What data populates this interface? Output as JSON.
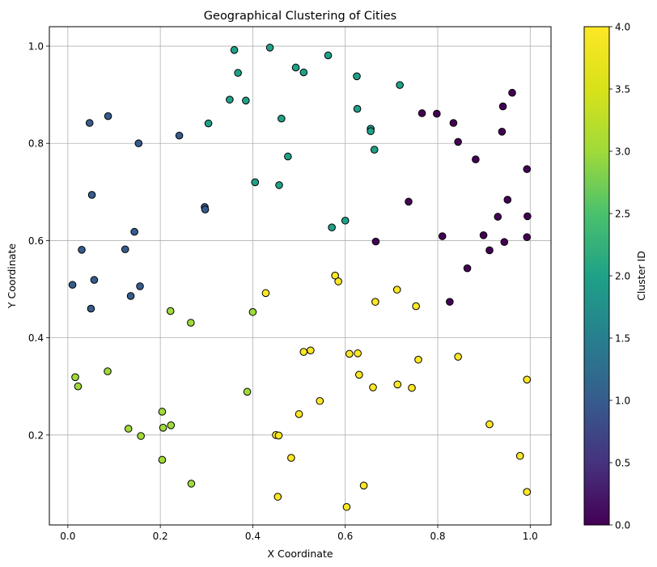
{
  "chart_data": {
    "type": "scatter",
    "title": "Geographical Clustering of Cities",
    "xlabel": "X Coordinate",
    "ylabel": "Y Coordinate",
    "xlim": [
      -0.04,
      1.045
    ],
    "ylim": [
      0.015,
      1.04
    ],
    "xticks": [
      0.0,
      0.2,
      0.4,
      0.6,
      0.8,
      1.0
    ],
    "xtick_labels": [
      "0.0",
      "0.2",
      "0.4",
      "0.6",
      "0.8",
      "1.0"
    ],
    "yticks": [
      0.2,
      0.4,
      0.6,
      0.8,
      1.0
    ],
    "ytick_labels": [
      "0.2",
      "0.4",
      "0.6",
      "0.8",
      "1.0"
    ],
    "grid": true,
    "colormap": "viridis",
    "colorbar": {
      "label": "Cluster ID",
      "min": 0.0,
      "max": 4.0,
      "ticks": [
        0.0,
        0.5,
        1.0,
        1.5,
        2.0,
        2.5,
        3.0,
        3.5,
        4.0
      ],
      "tick_labels": [
        "0.0",
        "0.5",
        "1.0",
        "1.5",
        "2.0",
        "2.5",
        "3.0",
        "3.5",
        "4.0"
      ]
    },
    "points": [
      [
        0.766,
        0.862,
        0
      ],
      [
        0.798,
        0.861,
        0
      ],
      [
        0.834,
        0.842,
        0
      ],
      [
        0.844,
        0.803,
        0
      ],
      [
        0.941,
        0.876,
        0
      ],
      [
        0.961,
        0.904,
        0
      ],
      [
        0.939,
        0.824,
        0
      ],
      [
        0.882,
        0.767,
        0
      ],
      [
        0.993,
        0.747,
        0
      ],
      [
        0.737,
        0.68,
        0
      ],
      [
        0.951,
        0.684,
        0
      ],
      [
        0.93,
        0.649,
        0
      ],
      [
        0.994,
        0.65,
        0
      ],
      [
        0.81,
        0.609,
        0
      ],
      [
        0.899,
        0.611,
        0
      ],
      [
        0.993,
        0.607,
        0
      ],
      [
        0.944,
        0.597,
        0
      ],
      [
        0.666,
        0.598,
        0
      ],
      [
        0.912,
        0.58,
        0
      ],
      [
        0.864,
        0.543,
        0
      ],
      [
        0.826,
        0.474,
        0
      ],
      [
        0.087,
        0.856,
        1
      ],
      [
        0.047,
        0.842,
        1
      ],
      [
        0.153,
        0.8,
        1
      ],
      [
        0.241,
        0.816,
        1
      ],
      [
        0.052,
        0.694,
        1
      ],
      [
        0.296,
        0.669,
        1
      ],
      [
        0.297,
        0.664,
        1
      ],
      [
        0.144,
        0.618,
        1
      ],
      [
        0.03,
        0.581,
        1
      ],
      [
        0.124,
        0.582,
        1
      ],
      [
        0.057,
        0.519,
        1
      ],
      [
        0.01,
        0.509,
        1
      ],
      [
        0.156,
        0.506,
        1
      ],
      [
        0.136,
        0.486,
        1
      ],
      [
        0.05,
        0.46,
        1
      ],
      [
        0.36,
        0.992,
        2
      ],
      [
        0.437,
        0.997,
        2
      ],
      [
        0.563,
        0.981,
        2
      ],
      [
        0.493,
        0.956,
        2
      ],
      [
        0.51,
        0.946,
        2
      ],
      [
        0.368,
        0.945,
        2
      ],
      [
        0.625,
        0.938,
        2
      ],
      [
        0.718,
        0.92,
        2
      ],
      [
        0.35,
        0.89,
        2
      ],
      [
        0.385,
        0.888,
        2
      ],
      [
        0.626,
        0.871,
        2
      ],
      [
        0.304,
        0.841,
        2
      ],
      [
        0.462,
        0.851,
        2
      ],
      [
        0.655,
        0.83,
        2
      ],
      [
        0.655,
        0.825,
        2
      ],
      [
        0.663,
        0.787,
        2
      ],
      [
        0.476,
        0.773,
        2
      ],
      [
        0.405,
        0.72,
        2
      ],
      [
        0.457,
        0.714,
        2
      ],
      [
        0.571,
        0.627,
        2
      ],
      [
        0.6,
        0.641,
        2
      ],
      [
        0.222,
        0.455,
        3
      ],
      [
        0.4,
        0.453,
        3
      ],
      [
        0.266,
        0.431,
        3
      ],
      [
        0.086,
        0.331,
        3
      ],
      [
        0.016,
        0.319,
        3
      ],
      [
        0.022,
        0.3,
        3
      ],
      [
        0.388,
        0.289,
        3
      ],
      [
        0.204,
        0.248,
        3
      ],
      [
        0.131,
        0.213,
        3
      ],
      [
        0.206,
        0.215,
        3
      ],
      [
        0.223,
        0.22,
        3
      ],
      [
        0.158,
        0.198,
        3
      ],
      [
        0.204,
        0.149,
        3
      ],
      [
        0.267,
        0.1,
        3
      ],
      [
        0.578,
        0.528,
        4
      ],
      [
        0.585,
        0.516,
        4
      ],
      [
        0.428,
        0.492,
        4
      ],
      [
        0.712,
        0.499,
        4
      ],
      [
        0.665,
        0.474,
        4
      ],
      [
        0.753,
        0.465,
        4
      ],
      [
        0.51,
        0.371,
        4
      ],
      [
        0.525,
        0.374,
        4
      ],
      [
        0.609,
        0.367,
        4
      ],
      [
        0.627,
        0.368,
        4
      ],
      [
        0.844,
        0.361,
        4
      ],
      [
        0.758,
        0.355,
        4
      ],
      [
        0.63,
        0.324,
        4
      ],
      [
        0.993,
        0.314,
        4
      ],
      [
        0.713,
        0.304,
        4
      ],
      [
        0.66,
        0.298,
        4
      ],
      [
        0.744,
        0.297,
        4
      ],
      [
        0.545,
        0.27,
        4
      ],
      [
        0.5,
        0.243,
        4
      ],
      [
        0.912,
        0.222,
        4
      ],
      [
        0.45,
        0.2,
        4
      ],
      [
        0.456,
        0.199,
        4
      ],
      [
        0.483,
        0.153,
        4
      ],
      [
        0.978,
        0.157,
        4
      ],
      [
        0.64,
        0.096,
        4
      ],
      [
        0.993,
        0.083,
        4
      ],
      [
        0.454,
        0.073,
        4
      ],
      [
        0.603,
        0.052,
        4
      ]
    ]
  }
}
